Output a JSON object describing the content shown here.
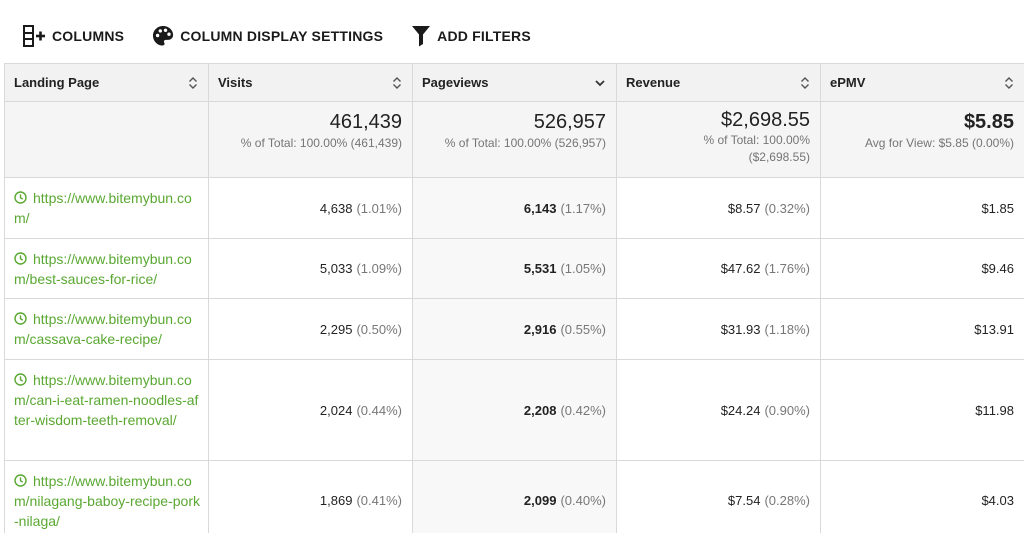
{
  "toolbar": {
    "columns_label": "COLUMNS",
    "display_settings_label": "COLUMN DISPLAY SETTINGS",
    "filters_label": "ADD FILTERS"
  },
  "table": {
    "headers": [
      "Landing Page",
      "Visits",
      "Pageviews",
      "Revenue",
      "ePMV"
    ],
    "totals": {
      "visits": {
        "value": "461,439",
        "sub": "% of Total: 100.00% (461,439)"
      },
      "pageviews": {
        "value": "526,957",
        "sub": "% of Total: 100.00% (526,957)"
      },
      "revenue": {
        "value": "$2,698.55",
        "sub1": "% of Total: 100.00%",
        "sub2": "($2,698.55)"
      },
      "epmv": {
        "value": "$5.85",
        "sub": "Avg for View: $5.85 (0.00%)"
      }
    },
    "rows": [
      {
        "url": "https://www.bitemybun.com/",
        "visits": "4,638",
        "visits_pct": "(1.01%)",
        "pageviews": "6,143",
        "pageviews_pct": "(1.17%)",
        "revenue": "$8.57",
        "revenue_pct": "(0.32%)",
        "epmv": "$1.85"
      },
      {
        "url": "https://www.bitemybun.com/best-sauces-for-rice/",
        "visits": "5,033",
        "visits_pct": "(1.09%)",
        "pageviews": "5,531",
        "pageviews_pct": "(1.05%)",
        "revenue": "$47.62",
        "revenue_pct": "(1.76%)",
        "epmv": "$9.46"
      },
      {
        "url": "https://www.bitemybun.com/cassava-cake-recipe/",
        "visits": "2,295",
        "visits_pct": "(0.50%)",
        "pageviews": "2,916",
        "pageviews_pct": "(0.55%)",
        "revenue": "$31.93",
        "revenue_pct": "(1.18%)",
        "epmv": "$13.91"
      },
      {
        "url": "https://www.bitemybun.com/can-i-eat-ramen-noodles-after-wisdom-teeth-removal/",
        "visits": "2,024",
        "visits_pct": "(0.44%)",
        "pageviews": "2,208",
        "pageviews_pct": "(0.42%)",
        "revenue": "$24.24",
        "revenue_pct": "(0.90%)",
        "epmv": "$11.98"
      },
      {
        "url": "https://www.bitemybun.com/nilagang-baboy-recipe-pork-nilaga/",
        "visits": "1,869",
        "visits_pct": "(0.41%)",
        "pageviews": "2,099",
        "pageviews_pct": "(0.40%)",
        "revenue": "$7.54",
        "revenue_pct": "(0.28%)",
        "epmv": "$4.03"
      }
    ]
  }
}
